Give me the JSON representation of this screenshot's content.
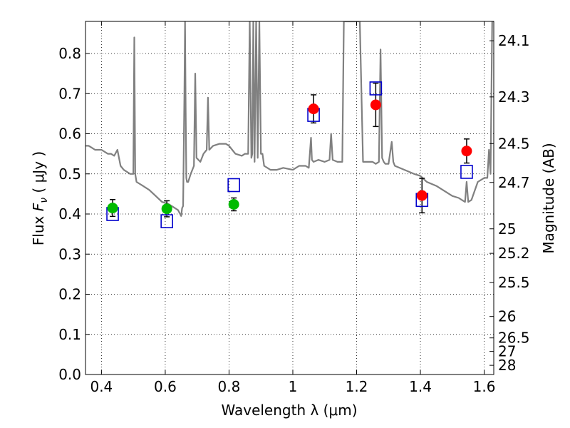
{
  "chart_data": {
    "type": "scatter",
    "xlabel": "Wavelength  λ (μm)",
    "ylabel": "Flux  F_ν  ( μJy )",
    "ylabel_parts": {
      "prefix": "Flux  ",
      "symbol": "F",
      "subscript": "ν",
      "suffix": "  ( μJy )"
    },
    "y2label": "Magnitude (AB)",
    "xlim": [
      0.35,
      1.63
    ],
    "ylim": [
      0.0,
      0.88
    ],
    "grid": true,
    "x_ticks": [
      0.4,
      0.6,
      0.8,
      1.0,
      1.2,
      1.4,
      1.6
    ],
    "x_tick_labels": [
      "0.4",
      "0.6",
      "0.8",
      "1",
      "1.2",
      "1.4",
      "1.6"
    ],
    "y_ticks": [
      0.0,
      0.1,
      0.2,
      0.3,
      0.4,
      0.5,
      0.6,
      0.7,
      0.8
    ],
    "y_tick_labels": [
      "0.0",
      "0.1",
      "0.2",
      "0.3",
      "0.4",
      "0.5",
      "0.6",
      "0.7",
      "0.8"
    ],
    "y2_ticks": [
      "24.1",
      "24.3",
      "24.5",
      "24.7",
      "25",
      "25.2",
      "25.5",
      "26",
      "26.5",
      "27",
      "28"
    ],
    "colors": {
      "spectrum": "#808080",
      "green": "#00bb00",
      "red": "#ff0000",
      "model": "#0000cc",
      "errorbar": "#000000",
      "grid": "#000000"
    },
    "series": [
      {
        "style": "line",
        "color": "#808080",
        "x": [
          0.35,
          0.36,
          0.37,
          0.38,
          0.39,
          0.4,
          0.41,
          0.42,
          0.43,
          0.44,
          0.45,
          0.46,
          0.47,
          0.48,
          0.49,
          0.5,
          0.503,
          0.506,
          0.51,
          0.53,
          0.55,
          0.57,
          0.59,
          0.61,
          0.63,
          0.64,
          0.65,
          0.653,
          0.656,
          0.66,
          0.662,
          0.664,
          0.666,
          0.668,
          0.672,
          0.68,
          0.69,
          0.694,
          0.698,
          0.71,
          0.72,
          0.73,
          0.734,
          0.738,
          0.75,
          0.77,
          0.79,
          0.8,
          0.81,
          0.82,
          0.84,
          0.85,
          0.86,
          0.865,
          0.87,
          0.873,
          0.876,
          0.88,
          0.885,
          0.89,
          0.895,
          0.9,
          0.905,
          0.91,
          0.93,
          0.95,
          0.97,
          1.0,
          1.02,
          1.04,
          1.05,
          1.057,
          1.06,
          1.065,
          1.08,
          1.1,
          1.115,
          1.12,
          1.125,
          1.14,
          1.155,
          1.16,
          1.17,
          1.18,
          1.21,
          1.22,
          1.25,
          1.26,
          1.27,
          1.275,
          1.28,
          1.285,
          1.29,
          1.3,
          1.31,
          1.315,
          1.32,
          1.35,
          1.38,
          1.4,
          1.42,
          1.45,
          1.48,
          1.5,
          1.52,
          1.53,
          1.54,
          1.545,
          1.55,
          1.56,
          1.58,
          1.6,
          1.61,
          1.615,
          1.62,
          1.625,
          1.63
        ],
        "y": [
          0.57,
          0.57,
          0.565,
          0.56,
          0.56,
          0.56,
          0.555,
          0.55,
          0.55,
          0.545,
          0.56,
          0.52,
          0.51,
          0.505,
          0.5,
          0.5,
          0.84,
          0.5,
          0.48,
          0.47,
          0.46,
          0.445,
          0.43,
          0.425,
          0.415,
          0.41,
          0.395,
          0.415,
          0.42,
          0.7,
          0.88,
          0.66,
          0.49,
          0.48,
          0.48,
          0.5,
          0.52,
          0.75,
          0.54,
          0.53,
          0.55,
          0.56,
          0.69,
          0.56,
          0.57,
          0.575,
          0.575,
          0.57,
          0.56,
          0.55,
          0.545,
          0.55,
          0.55,
          0.88,
          0.54,
          0.55,
          0.88,
          0.53,
          0.88,
          0.54,
          0.88,
          0.55,
          0.55,
          0.52,
          0.51,
          0.51,
          0.515,
          0.51,
          0.52,
          0.52,
          0.515,
          0.59,
          0.535,
          0.53,
          0.535,
          0.53,
          0.535,
          0.6,
          0.535,
          0.53,
          0.53,
          0.88,
          0.88,
          0.88,
          0.88,
          0.53,
          0.53,
          0.525,
          0.53,
          0.81,
          0.54,
          0.53,
          0.525,
          0.525,
          0.58,
          0.53,
          0.52,
          0.51,
          0.5,
          0.495,
          0.48,
          0.47,
          0.455,
          0.445,
          0.44,
          0.435,
          0.43,
          0.48,
          0.43,
          0.435,
          0.48,
          0.49,
          0.49,
          0.56,
          0.5,
          0.88,
          0.88
        ]
      },
      {
        "style": "points",
        "color": "#00bb00",
        "x": [
          0.435,
          0.605,
          0.815
        ],
        "y": [
          0.415,
          0.413,
          0.424
        ],
        "yerr": [
          0.021,
          0.02,
          0.016
        ]
      },
      {
        "style": "points",
        "color": "#ff0000",
        "x": [
          1.065,
          1.26,
          1.405,
          1.545
        ],
        "y": [
          0.662,
          0.672,
          0.446,
          0.557
        ],
        "yerr": [
          0.035,
          0.054,
          0.043,
          0.03
        ]
      },
      {
        "style": "open-squares",
        "color": "#0000cc",
        "x": [
          0.435,
          0.605,
          0.815,
          1.065,
          1.26,
          1.405,
          1.545
        ],
        "y": [
          0.4,
          0.382,
          0.472,
          0.647,
          0.713,
          0.435,
          0.505
        ]
      }
    ]
  }
}
